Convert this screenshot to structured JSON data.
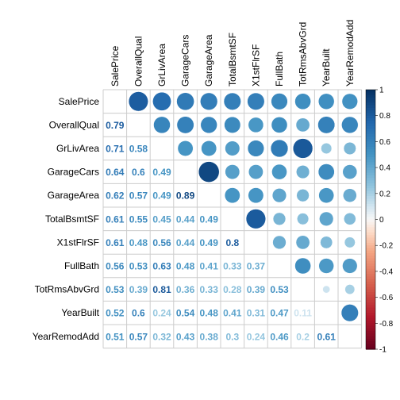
{
  "chart_data": {
    "type": "heatmap",
    "variables": [
      "SalePrice",
      "OverallQual",
      "GrLivArea",
      "GarageCars",
      "GarageArea",
      "TotalBsmtSF",
      "X1stFlrSF",
      "FullBath",
      "TotRmsAbvGrd",
      "YearBuilt",
      "YearRemodAdd"
    ],
    "matrix": [
      [
        1.0,
        0.79,
        0.71,
        0.64,
        0.62,
        0.61,
        0.61,
        0.56,
        0.53,
        0.52,
        0.51
      ],
      [
        0.79,
        1.0,
        0.58,
        0.6,
        0.57,
        0.55,
        0.48,
        0.53,
        0.39,
        0.6,
        0.57
      ],
      [
        0.71,
        0.58,
        1.0,
        0.49,
        0.49,
        0.45,
        0.56,
        0.63,
        0.81,
        0.24,
        0.32
      ],
      [
        0.64,
        0.6,
        0.49,
        1.0,
        0.89,
        0.44,
        0.44,
        0.48,
        0.36,
        0.54,
        0.43
      ],
      [
        0.62,
        0.57,
        0.49,
        0.89,
        1.0,
        0.49,
        0.49,
        0.41,
        0.33,
        0.48,
        0.38
      ],
      [
        0.61,
        0.55,
        0.45,
        0.44,
        0.49,
        1.0,
        0.8,
        0.33,
        0.28,
        0.41,
        0.3
      ],
      [
        0.61,
        0.48,
        0.56,
        0.44,
        0.49,
        0.8,
        1.0,
        0.37,
        0.39,
        0.31,
        0.24
      ],
      [
        0.56,
        0.53,
        0.63,
        0.48,
        0.41,
        0.33,
        0.37,
        1.0,
        0.53,
        0.47,
        0.46
      ],
      [
        0.53,
        0.39,
        0.81,
        0.36,
        0.33,
        0.28,
        0.39,
        0.53,
        1.0,
        0.11,
        0.2
      ],
      [
        0.52,
        0.6,
        0.24,
        0.54,
        0.48,
        0.41,
        0.31,
        0.47,
        0.11,
        1.0,
        0.61
      ],
      [
        0.51,
        0.57,
        0.32,
        0.43,
        0.38,
        0.3,
        0.24,
        0.46,
        0.2,
        0.61,
        1.0
      ]
    ],
    "lower_triangle": "numbers",
    "upper_triangle": "circles",
    "diagonal": "blank",
    "number_labels": [
      "1",
      "0.8",
      "0.6",
      "0.4",
      "0.2",
      "0",
      "-0.2",
      "-0.4",
      "-0.6",
      "-0.8",
      "-1"
    ],
    "colorbar": {
      "range": [
        -1,
        1
      ],
      "ticks": [
        1,
        0.8,
        0.6,
        0.4,
        0.2,
        0,
        -0.2,
        -0.4,
        -0.6,
        -0.8,
        -1
      ],
      "placement": "right"
    },
    "palette": {
      "negative": "#67001f",
      "neutral": "#f7f7f7",
      "positive": "#053061"
    },
    "title": "",
    "xlabel": "",
    "ylabel": ""
  }
}
